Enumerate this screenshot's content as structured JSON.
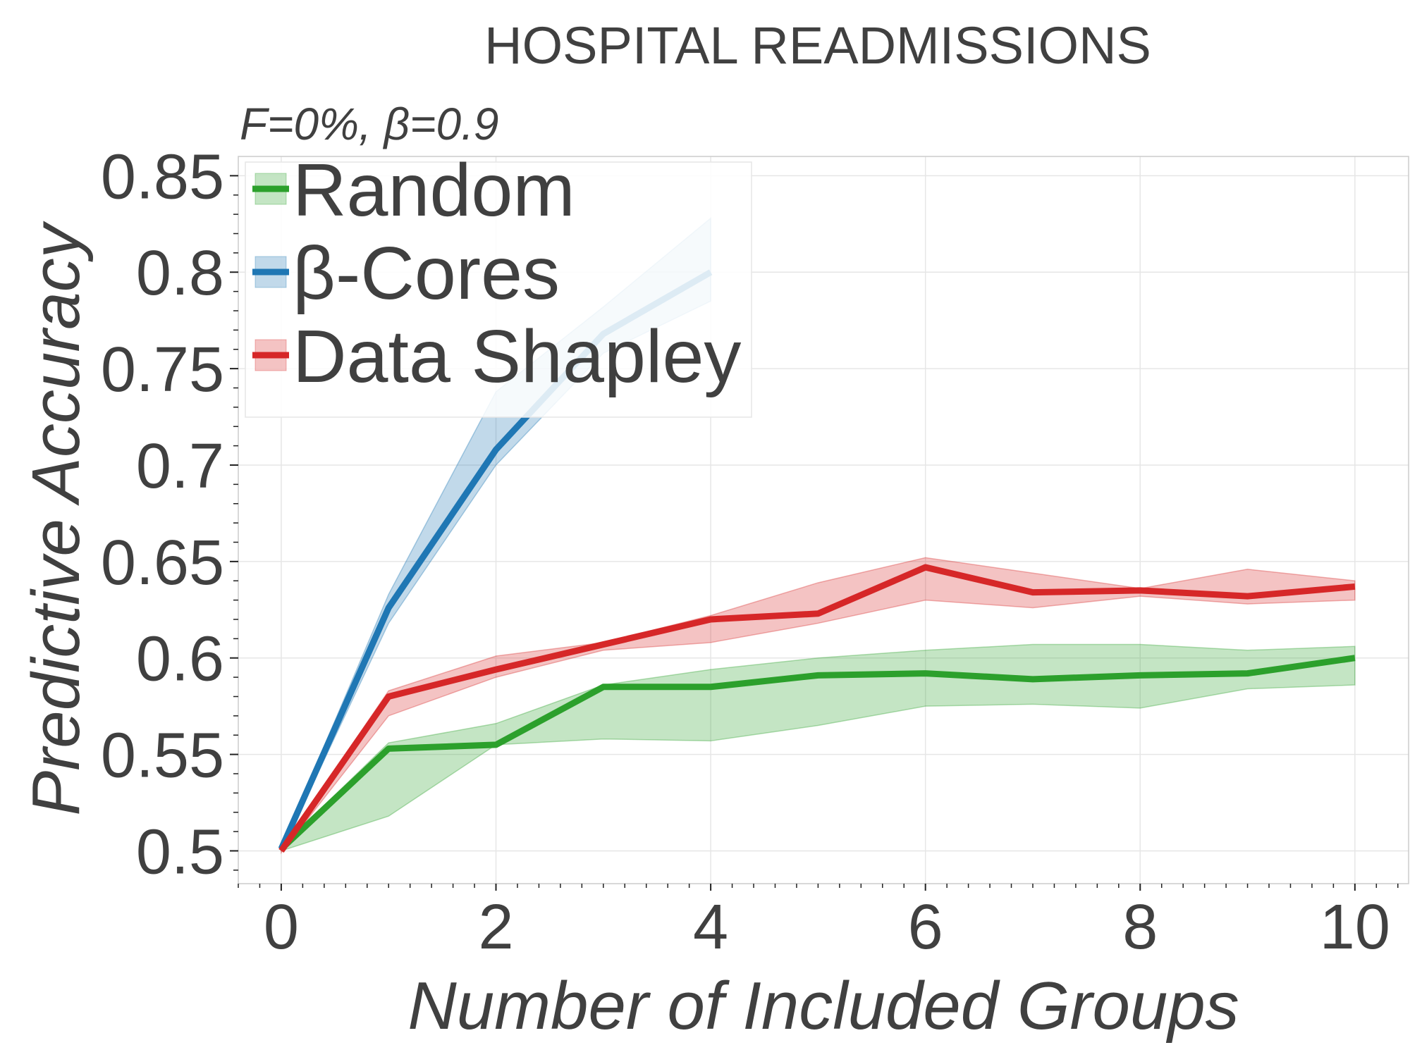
{
  "chart_data": {
    "type": "line",
    "title": "HOSPITAL READMISSIONS",
    "subtitle": "F=0%,  β=0.9",
    "xlabel": "Number of Included Groups",
    "ylabel": "Predictive Accuracy",
    "xlim": [
      -0.4,
      10.5
    ],
    "ylim": [
      0.483,
      0.86
    ],
    "x_ticks": [
      0,
      2,
      4,
      6,
      8,
      10
    ],
    "x_tick_labels": [
      "0",
      "2",
      "4",
      "6",
      "8",
      "10"
    ],
    "y_ticks": [
      0.5,
      0.55,
      0.6,
      0.65,
      0.7,
      0.75,
      0.8,
      0.85
    ],
    "y_tick_labels": [
      "0.5",
      "0.55",
      "0.6",
      "0.65",
      "0.7",
      "0.75",
      "0.8",
      "0.85"
    ],
    "grid": true,
    "legend_position": "top-left",
    "series": [
      {
        "name": "Random",
        "color": "#2ca02c",
        "x": [
          0,
          1,
          2,
          3,
          4,
          5,
          6,
          7,
          8,
          9,
          10
        ],
        "values": [
          0.501,
          0.553,
          0.555,
          0.585,
          0.585,
          0.591,
          0.592,
          0.589,
          0.591,
          0.592,
          0.6
        ],
        "lower": [
          0.5,
          0.518,
          0.555,
          0.558,
          0.557,
          0.565,
          0.575,
          0.576,
          0.574,
          0.584,
          0.586
        ],
        "upper": [
          0.502,
          0.556,
          0.566,
          0.586,
          0.594,
          0.6,
          0.604,
          0.607,
          0.607,
          0.604,
          0.606
        ]
      },
      {
        "name": "β-Cores",
        "color": "#1f77b4",
        "x": [
          0,
          1,
          2,
          3,
          4
        ],
        "values": [
          0.501,
          0.626,
          0.708,
          0.768,
          0.8
        ],
        "lower": [
          0.5,
          0.618,
          0.7,
          0.758,
          0.785
        ],
        "upper": [
          0.502,
          0.633,
          0.738,
          0.782,
          0.828
        ]
      },
      {
        "name": "Data Shapley",
        "color": "#d62728",
        "x": [
          0,
          1,
          2,
          3,
          4,
          5,
          6,
          7,
          8,
          9,
          10
        ],
        "values": [
          0.5,
          0.58,
          0.594,
          0.607,
          0.62,
          0.623,
          0.647,
          0.634,
          0.635,
          0.632,
          0.637
        ],
        "lower": [
          0.499,
          0.57,
          0.59,
          0.604,
          0.608,
          0.618,
          0.63,
          0.626,
          0.632,
          0.628,
          0.63
        ],
        "upper": [
          0.501,
          0.583,
          0.601,
          0.608,
          0.622,
          0.639,
          0.652,
          0.644,
          0.636,
          0.646,
          0.64
        ]
      }
    ]
  }
}
